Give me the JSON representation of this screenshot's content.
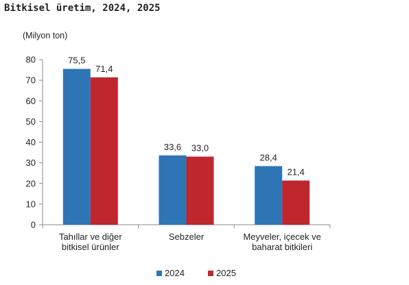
{
  "title": "Bitkisel üretim, 2024, 2025",
  "chart_data": {
    "type": "bar",
    "unit_label": "(Milyon ton)",
    "categories": [
      [
        "Tahıllar ve diğer",
        "bitkisel ürünler"
      ],
      [
        "Sebzeler"
      ],
      [
        "Meyveler, içecek ve",
        "baharat  bitkileri"
      ]
    ],
    "series": [
      {
        "name": "2024",
        "color": "#2e75b6",
        "values": [
          75.5,
          33.6,
          28.4
        ],
        "labels": [
          "75,5",
          "33,6",
          "28,4"
        ]
      },
      {
        "name": "2025",
        "color": "#c0262d",
        "values": [
          71.4,
          33.0,
          21.4
        ],
        "labels": [
          "71,4",
          "33,0",
          "21,4"
        ]
      }
    ],
    "ylim": [
      0,
      80
    ],
    "yticks": [
      0,
      10,
      20,
      30,
      40,
      50,
      60,
      70,
      80
    ],
    "grid": false,
    "legend_position": "bottom"
  }
}
